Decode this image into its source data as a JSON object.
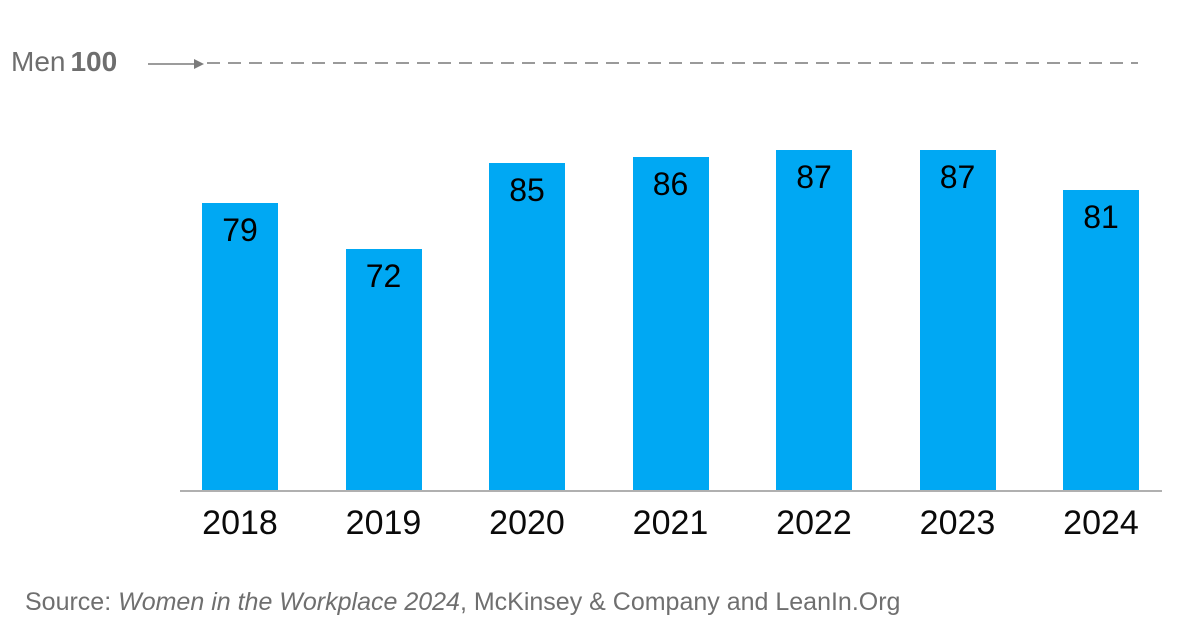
{
  "chart_data": {
    "type": "bar",
    "title": "",
    "categories": [
      "2018",
      "2019",
      "2020",
      "2021",
      "2022",
      "2023",
      "2024"
    ],
    "values": [
      79,
      72,
      85,
      86,
      87,
      87,
      81
    ],
    "xlabel": "",
    "ylabel": "",
    "ylim": [
      35,
      102
    ],
    "grid": false,
    "legend": "none",
    "bar_color": "#00A8F3",
    "value_label_color": "#000000",
    "reference_line": {
      "label_regular": "Men",
      "label_bold": "100",
      "value": 100,
      "style": "dashed",
      "color": "#9A9A9A"
    }
  },
  "reference": {
    "label_regular": "Men",
    "label_bold": "100"
  },
  "source": {
    "prefix": "Source: ",
    "italic": "Women in the Workplace 2024",
    "suffix": ", McKinsey & Company and LeanIn.Org"
  },
  "colors": {
    "bar": "#00A8F3",
    "reference_text": "#6E6E6E",
    "dashed_line": "#9A9A9A",
    "arrow": "#7B7B7B",
    "axis_line": "#B0B0B0",
    "source_text": "#6F6F6F",
    "background": "#FFFFFF"
  }
}
